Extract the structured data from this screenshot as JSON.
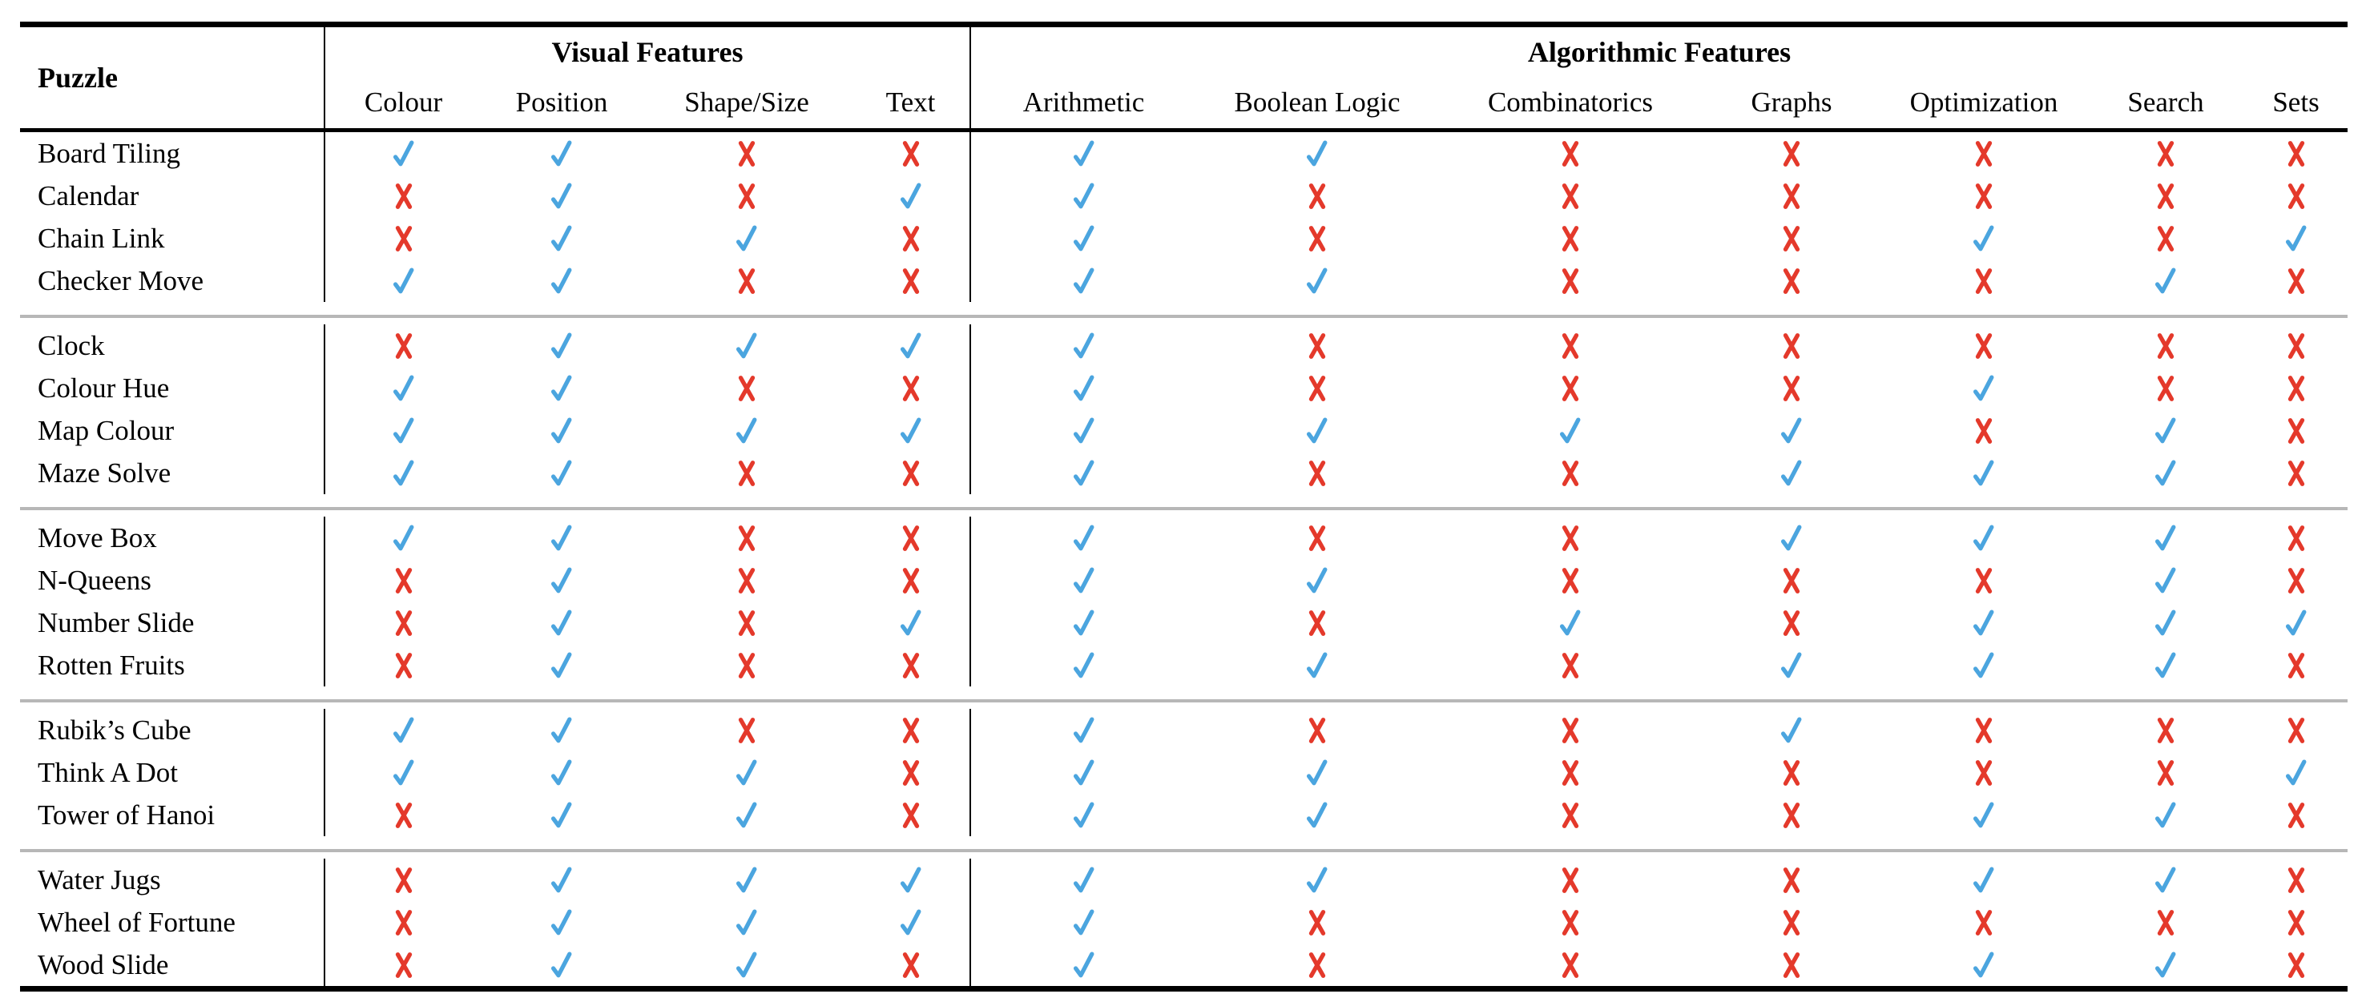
{
  "chart_data": {
    "type": "table",
    "row_label_header": "Puzzle",
    "column_groups": [
      {
        "label": "Visual Features",
        "span": 4
      },
      {
        "label": "Algorithmic Features",
        "span": 7
      }
    ],
    "columns": [
      "Colour",
      "Position",
      "Shape/Size",
      "Text",
      "Arithmetic",
      "Boolean Logic",
      "Combinatorics",
      "Graphs",
      "Optimization",
      "Search",
      "Sets"
    ],
    "symbols": {
      "check": "✓",
      "cross": "✗"
    },
    "colors": {
      "check": "#4BA5DF",
      "cross": "#E4392B"
    },
    "row_groups": [
      {
        "rows": [
          {
            "puzzle": "Board Tiling",
            "features": [
              true,
              true,
              false,
              false,
              true,
              true,
              false,
              false,
              false,
              false,
              false
            ]
          },
          {
            "puzzle": "Calendar",
            "features": [
              false,
              true,
              false,
              true,
              true,
              false,
              false,
              false,
              false,
              false,
              false
            ]
          },
          {
            "puzzle": "Chain Link",
            "features": [
              false,
              true,
              true,
              false,
              true,
              false,
              false,
              false,
              true,
              false,
              true
            ]
          },
          {
            "puzzle": "Checker Move",
            "features": [
              true,
              true,
              false,
              false,
              true,
              true,
              false,
              false,
              false,
              true,
              false
            ]
          }
        ]
      },
      {
        "rows": [
          {
            "puzzle": "Clock",
            "features": [
              false,
              true,
              true,
              true,
              true,
              false,
              false,
              false,
              false,
              false,
              false
            ]
          },
          {
            "puzzle": "Colour Hue",
            "features": [
              true,
              true,
              false,
              false,
              true,
              false,
              false,
              false,
              true,
              false,
              false
            ]
          },
          {
            "puzzle": "Map Colour",
            "features": [
              true,
              true,
              true,
              true,
              true,
              true,
              true,
              true,
              false,
              true,
              false
            ]
          },
          {
            "puzzle": "Maze Solve",
            "features": [
              true,
              true,
              false,
              false,
              true,
              false,
              false,
              true,
              true,
              true,
              false
            ]
          }
        ]
      },
      {
        "rows": [
          {
            "puzzle": "Move Box",
            "features": [
              true,
              true,
              false,
              false,
              true,
              false,
              false,
              true,
              true,
              true,
              false
            ]
          },
          {
            "puzzle": "N-Queens",
            "features": [
              false,
              true,
              false,
              false,
              true,
              true,
              false,
              false,
              false,
              true,
              false
            ]
          },
          {
            "puzzle": "Number Slide",
            "features": [
              false,
              true,
              false,
              true,
              true,
              false,
              true,
              false,
              true,
              true,
              true
            ]
          },
          {
            "puzzle": "Rotten Fruits",
            "features": [
              false,
              true,
              false,
              false,
              true,
              true,
              false,
              true,
              true,
              true,
              false
            ]
          }
        ]
      },
      {
        "rows": [
          {
            "puzzle": "Rubik’s Cube",
            "features": [
              true,
              true,
              false,
              false,
              true,
              false,
              false,
              true,
              false,
              false,
              false
            ]
          },
          {
            "puzzle": "Think A Dot",
            "features": [
              true,
              true,
              true,
              false,
              true,
              true,
              false,
              false,
              false,
              false,
              true
            ]
          },
          {
            "puzzle": "Tower of Hanoi",
            "features": [
              false,
              true,
              true,
              false,
              true,
              true,
              false,
              false,
              true,
              true,
              false
            ]
          }
        ]
      },
      {
        "rows": [
          {
            "puzzle": "Water Jugs",
            "features": [
              false,
              true,
              true,
              true,
              true,
              true,
              false,
              false,
              true,
              true,
              false
            ]
          },
          {
            "puzzle": "Wheel of Fortune",
            "features": [
              false,
              true,
              true,
              true,
              true,
              false,
              false,
              false,
              false,
              false,
              false
            ]
          },
          {
            "puzzle": "Wood Slide",
            "features": [
              false,
              true,
              true,
              false,
              true,
              false,
              false,
              false,
              true,
              true,
              false
            ]
          }
        ]
      }
    ]
  }
}
